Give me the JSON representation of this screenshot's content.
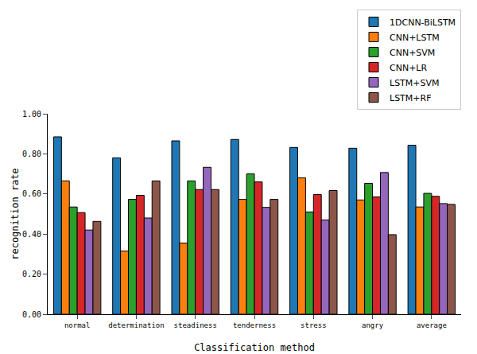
{
  "chart_data": {
    "type": "bar",
    "x_label": "Classification method",
    "y_label": "recognition rate",
    "categories": [
      "normal",
      "determination",
      "steadiness",
      "tenderness",
      "stress",
      "angry",
      "average"
    ],
    "series": [
      {
        "name": "1DCNN-BiLSTM",
        "color": "#1f77b4",
        "values": [
          0.885,
          0.78,
          0.865,
          0.872,
          0.832,
          0.828,
          0.843
        ]
      },
      {
        "name": "CNN+LSTM",
        "color": "#ff7f0e",
        "values": [
          0.665,
          0.315,
          0.355,
          0.573,
          0.68,
          0.57,
          0.535
        ]
      },
      {
        "name": "CNN+SVM",
        "color": "#2ca02c",
        "values": [
          0.535,
          0.573,
          0.665,
          0.7,
          0.51,
          0.653,
          0.603
        ]
      },
      {
        "name": "CNN+LR",
        "color": "#d62728",
        "values": [
          0.507,
          0.593,
          0.622,
          0.66,
          0.597,
          0.585,
          0.588
        ]
      },
      {
        "name": "LSTM+SVM",
        "color": "#9467bd",
        "values": [
          0.42,
          0.48,
          0.733,
          0.533,
          0.47,
          0.707,
          0.552
        ]
      },
      {
        "name": "LSTM+RF",
        "color": "#8c564b",
        "values": [
          0.463,
          0.665,
          0.622,
          0.573,
          0.617,
          0.397,
          0.548
        ]
      }
    ],
    "ylim": [
      0,
      1
    ],
    "yticks": [
      {
        "value": 0,
        "label": "0.00"
      },
      {
        "value": 0.2,
        "label": "0.20"
      },
      {
        "value": 0.4,
        "label": "0.40"
      },
      {
        "value": 0.6,
        "label": "0.60"
      },
      {
        "value": 0.8,
        "label": "0.80"
      },
      {
        "value": 1,
        "label": "1.00"
      }
    ],
    "grid": false,
    "legend": "upper right"
  }
}
